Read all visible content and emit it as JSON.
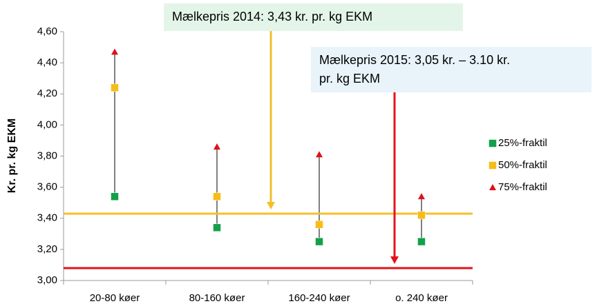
{
  "chart_data": {
    "type": "scatter",
    "ylabel": "Kr. pr. kg EKM",
    "categories": [
      "20-80 køer",
      "80-160 køer",
      "160-240 køer",
      "o. 240 køer"
    ],
    "series": [
      {
        "name": "25%-fraktil",
        "color": "#13a04a",
        "marker": "square",
        "values": [
          3.54,
          3.34,
          3.25,
          3.25
        ]
      },
      {
        "name": "50%-fraktil",
        "color": "#f6bd17",
        "marker": "square",
        "values": [
          4.24,
          3.54,
          3.36,
          3.42
        ]
      },
      {
        "name": "75%-fraktil",
        "color": "#e0101a",
        "marker": "triangle",
        "values": [
          4.47,
          3.86,
          3.81,
          3.54
        ]
      }
    ],
    "ylim": [
      3.0,
      4.6
    ],
    "yticks": [
      {
        "value": 3.0,
        "label": "3,00"
      },
      {
        "value": 3.2,
        "label": "3,20"
      },
      {
        "value": 3.4,
        "label": "3,40"
      },
      {
        "value": 3.6,
        "label": "3,60"
      },
      {
        "value": 3.8,
        "label": "3,80"
      },
      {
        "value": 4.0,
        "label": "4,00"
      },
      {
        "value": 4.2,
        "label": "4,20"
      },
      {
        "value": 4.4,
        "label": "4,40"
      },
      {
        "value": 4.6,
        "label": "4,60"
      }
    ],
    "legend": "right",
    "reference_lines": [
      {
        "value": 3.43,
        "color": "#f3bf2b",
        "box_color": "#e3f5e8",
        "text": [
          "Mælkepris 2014: 3,43 kr. pr. kg EKM"
        ]
      },
      {
        "value": 3.08,
        "color": "#e2131b",
        "box_color": "#e8f3fa",
        "text": [
          "Mælkepris 2015: 3,05 kr. – 3.10 kr.",
          "pr. kg EKM"
        ]
      }
    ]
  }
}
